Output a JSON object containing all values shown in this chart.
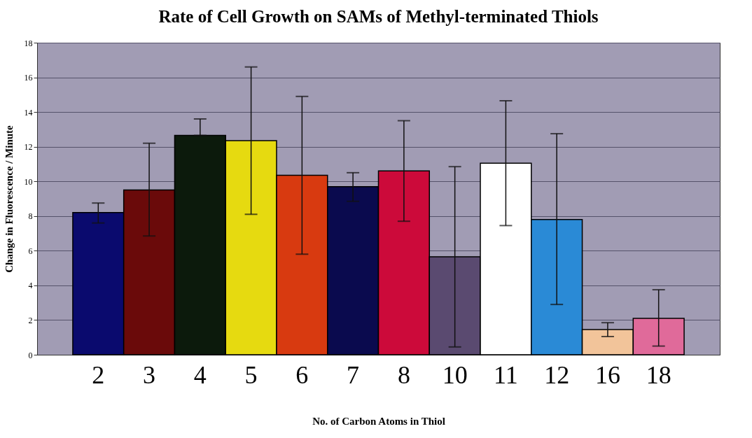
{
  "chart_data": {
    "type": "bar",
    "title": "Rate of Cell Growth on SAMs of Methyl-terminated Thiols",
    "xlabel": "No. of Carbon Atoms in Thiol",
    "ylabel": "Change in Fluorescence  / Minute",
    "categories": [
      "2",
      "3",
      "4",
      "5",
      "6",
      "7",
      "8",
      "10",
      "11",
      "12",
      "16",
      "18"
    ],
    "values": [
      8.2,
      9.5,
      12.65,
      12.35,
      10.35,
      9.7,
      10.6,
      5.65,
      11.05,
      7.8,
      1.45,
      2.1
    ],
    "errors": [
      [
        7.6,
        8.75
      ],
      [
        6.85,
        12.2
      ],
      [
        12.65,
        13.6
      ],
      [
        8.1,
        16.6
      ],
      [
        5.8,
        14.9
      ],
      [
        8.85,
        10.5
      ],
      [
        7.7,
        13.5
      ],
      [
        0.45,
        10.85
      ],
      [
        7.45,
        14.65
      ],
      [
        2.9,
        12.75
      ],
      [
        1.05,
        1.85
      ],
      [
        0.5,
        3.75
      ]
    ],
    "colors": [
      "#0a0a6e",
      "#6a0a0a",
      "#0c1a0c",
      "#e6da10",
      "#d83a10",
      "#0a0a4e",
      "#cc0a3a",
      "#5a4a70",
      "#ffffff",
      "#2a8ad6",
      "#f2c49a",
      "#e06a9a"
    ],
    "ylim": [
      0,
      18
    ],
    "yticks": [
      0,
      2,
      4,
      6,
      8,
      10,
      12,
      14,
      16,
      18
    ],
    "grid": "y"
  }
}
